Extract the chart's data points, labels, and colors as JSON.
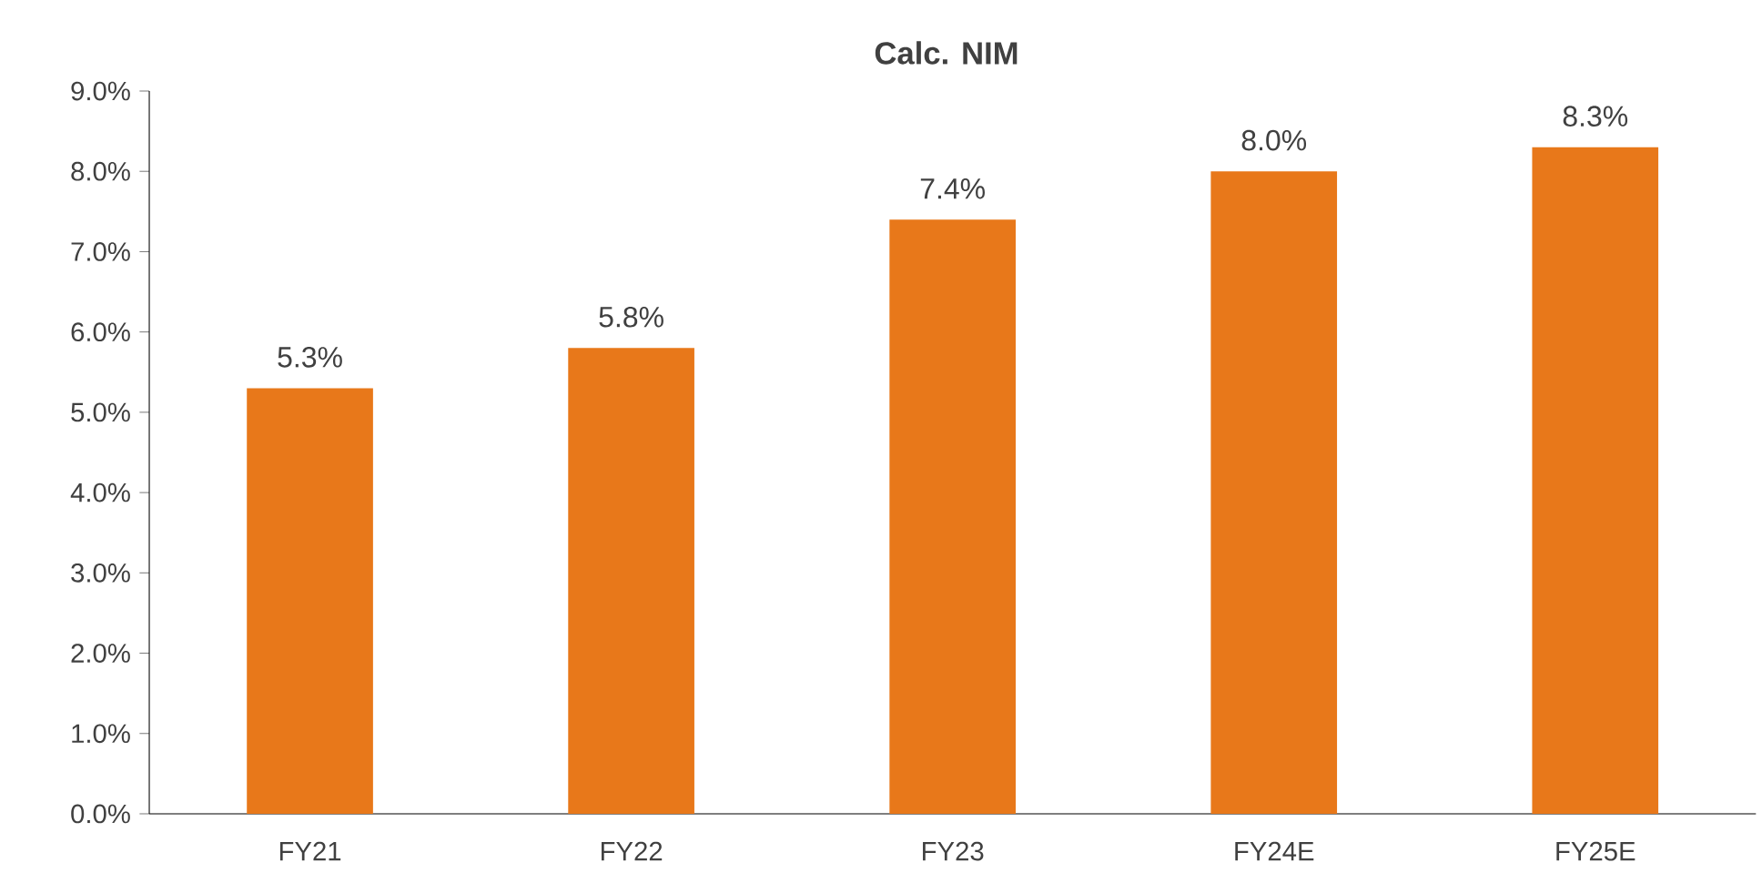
{
  "chart_data": {
    "type": "bar",
    "title": "Calc. NIM",
    "categories": [
      "FY21",
      "FY22",
      "FY23",
      "FY24E",
      "FY25E"
    ],
    "values": [
      5.3,
      5.8,
      7.4,
      8.0,
      8.3
    ],
    "value_labels": [
      "5.3%",
      "5.8%",
      "7.4%",
      "8.0%",
      "8.3%"
    ],
    "color": "#e8781a",
    "ylim": [
      0,
      9
    ],
    "yticks": [
      {
        "value": 0,
        "label": "0.0%"
      },
      {
        "value": 1,
        "label": "1.0%"
      },
      {
        "value": 2,
        "label": "2.0%"
      },
      {
        "value": 3,
        "label": "3.0%"
      },
      {
        "value": 4,
        "label": "4.0%"
      },
      {
        "value": 5,
        "label": "5.0%"
      },
      {
        "value": 6,
        "label": "6.0%"
      },
      {
        "value": 7,
        "label": "7.0%"
      },
      {
        "value": 8,
        "label": "8.0%"
      },
      {
        "value": 9,
        "label": "9.0%"
      }
    ],
    "grid": false
  }
}
